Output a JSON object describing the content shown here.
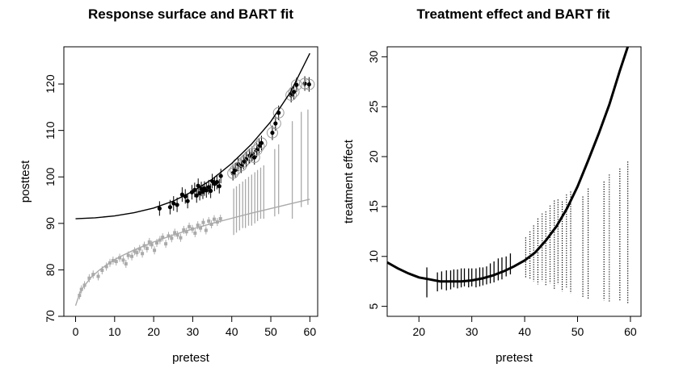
{
  "chart_data": [
    {
      "type": "scatter",
      "title": "Response surface and BART fit",
      "xlabel": "pretest",
      "ylabel": "posttest",
      "xlim": [
        -3,
        62
      ],
      "ylim": [
        70,
        128
      ],
      "x_ticks": [
        0,
        10,
        20,
        30,
        40,
        50,
        60
      ],
      "y_ticks": [
        70,
        80,
        90,
        100,
        110,
        120
      ],
      "grid": false,
      "series": [
        {
          "role": "treated observations",
          "color": "#000000",
          "marker": "filled-circle-with-interval",
          "x": [
            21.5,
            24.2,
            25.1,
            26.0,
            27.3,
            28.1,
            28.7,
            29.8,
            30.5,
            31.0,
            31.4,
            31.8,
            32.2,
            32.6,
            33.0,
            33.5,
            34.1,
            34.6,
            35.0,
            35.6,
            36.2,
            36.8,
            37.2,
            40.3,
            40.9,
            41.6,
            42.4,
            43.0,
            43.7,
            44.5,
            45.2,
            45.8,
            46.4,
            47.0,
            47.6,
            50.4,
            51.2,
            52.0,
            55.2,
            55.9,
            56.6,
            58.7,
            59.8
          ],
          "y": [
            93.2,
            93.5,
            94.3,
            94.0,
            96.2,
            95.8,
            94.8,
            96.7,
            97.2,
            96.0,
            98.1,
            96.5,
            97.4,
            96.8,
            97.5,
            97.1,
            97.8,
            97.0,
            99.1,
            98.5,
            98.9,
            98.0,
            100.2,
            100.8,
            101.5,
            102.8,
            102.4,
            103.2,
            103.8,
            104.5,
            105.0,
            104.2,
            105.8,
            106.6,
            107.3,
            109.5,
            111.5,
            113.8,
            117.6,
            118.3,
            119.8,
            120.1,
            119.9
          ]
        },
        {
          "role": "control observations",
          "color": "#aaaaaa",
          "marker": "square",
          "x": [
            1.0,
            1.5,
            2.3,
            3.5,
            4.5,
            5.8,
            6.8,
            7.9,
            8.8,
            9.6,
            10.4,
            11.3,
            12.2,
            12.9,
            13.5,
            14.4,
            15.1,
            15.7,
            16.4,
            17.1,
            17.6,
            18.3,
            18.9,
            19.5,
            20.2,
            20.8,
            21.6,
            22.3,
            23.1,
            23.8,
            24.6,
            25.4,
            26.1,
            26.9,
            27.7,
            28.4,
            29.1,
            29.9,
            30.6,
            31.3,
            32.0,
            32.7,
            33.4,
            34.1,
            34.8,
            35.5,
            36.3,
            37.1
          ],
          "y": [
            74.5,
            75.8,
            76.7,
            78.2,
            79.0,
            78.6,
            79.9,
            80.7,
            81.5,
            82.0,
            81.8,
            82.6,
            82.1,
            81.3,
            83.1,
            82.9,
            84.0,
            83.7,
            84.5,
            83.5,
            85.2,
            84.6,
            86.0,
            85.4,
            84.2,
            85.8,
            86.4,
            87.0,
            85.6,
            87.3,
            86.8,
            88.0,
            87.5,
            86.9,
            88.6,
            88.2,
            89.3,
            88.8,
            87.9,
            89.6,
            89.0,
            90.2,
            88.5,
            90.5,
            89.8,
            90.9,
            90.3,
            91.0
          ]
        },
        {
          "role": "control intervals (no data)",
          "color": "#aaaaaa",
          "marker": "vertical-interval",
          "x": [
            40.5,
            41.2,
            42.0,
            42.8,
            43.5,
            44.3,
            45.1,
            45.9,
            46.6,
            47.4,
            48.2,
            51.0,
            52.0,
            55.5,
            57.8,
            59.5
          ],
          "y": [
            92.5,
            93.0,
            93.5,
            94.0,
            94.2,
            94.7,
            95.0,
            95.5,
            96.0,
            96.6,
            97.0,
            98.8,
            99.5,
            101.5,
            104.0,
            106.0
          ],
          "y_low": [
            87.5,
            88.0,
            88.5,
            89.0,
            89.0,
            89.5,
            89.5,
            90.0,
            90.5,
            91.0,
            91.0,
            91.5,
            92.0,
            91.0,
            93.5,
            94.0
          ],
          "y_high": [
            97.5,
            98.0,
            98.5,
            99.0,
            99.5,
            100.0,
            100.5,
            101.0,
            101.5,
            102.0,
            102.5,
            106.0,
            107.0,
            112.0,
            114.0,
            114.5
          ]
        },
        {
          "role": "true treated response curve",
          "color": "#000000",
          "marker": "line",
          "x": [
            0,
            5,
            10,
            15,
            20,
            25,
            30,
            35,
            40,
            45,
            50,
            55,
            60
          ],
          "y": [
            91.0,
            91.2,
            91.6,
            92.3,
            93.3,
            94.8,
            96.9,
            99.5,
            102.9,
            107.0,
            111.9,
            118.2,
            126.6
          ]
        },
        {
          "role": "true control response curve",
          "color": "#aaaaaa",
          "marker": "line",
          "x": [
            0,
            1,
            2,
            4,
            6,
            8,
            10,
            12,
            15,
            20,
            25,
            30,
            35,
            40,
            45,
            50,
            55,
            60
          ],
          "y": [
            72.3,
            74.8,
            76.3,
            78.4,
            79.9,
            81.1,
            82.2,
            83.1,
            84.3,
            86.0,
            87.5,
            88.8,
            90.0,
            91.1,
            92.2,
            93.2,
            94.2,
            95.2
          ]
        }
      ]
    },
    {
      "type": "scatter",
      "title": "Treatment effect and BART fit",
      "xlabel": "pretest",
      "ylabel": "treatment effect",
      "xlim": [
        14,
        62
      ],
      "ylim": [
        4,
        31
      ],
      "x_ticks": [
        20,
        30,
        40,
        50,
        60
      ],
      "y_ticks": [
        5,
        10,
        15,
        20,
        25,
        30
      ],
      "grid": false,
      "series": [
        {
          "role": "true treatment effect curve",
          "color": "#000000",
          "marker": "line",
          "x": [
            14,
            16,
            18,
            20,
            22,
            24,
            26,
            28,
            30,
            32,
            34,
            36,
            38,
            40,
            42,
            44,
            46,
            48,
            50,
            52,
            54,
            56,
            58,
            59.5
          ],
          "y": [
            9.4,
            8.8,
            8.3,
            7.9,
            7.7,
            7.5,
            7.5,
            7.5,
            7.6,
            7.8,
            8.1,
            8.5,
            9.0,
            9.6,
            10.4,
            11.6,
            13.0,
            14.8,
            17.0,
            19.6,
            22.3,
            25.2,
            28.6,
            31.0
          ]
        },
        {
          "role": "intervals where data present",
          "color": "#000000",
          "marker": "vertical-interval",
          "x": [
            21.5,
            23.5,
            24.3,
            25.2,
            26.0,
            26.6,
            27.3,
            28.0,
            28.6,
            29.4,
            30.0,
            30.8,
            31.5,
            32.1,
            32.8,
            33.5,
            34.2,
            35.0,
            35.7,
            36.5,
            37.3
          ],
          "y_low": [
            5.9,
            6.5,
            6.7,
            6.6,
            6.7,
            6.9,
            6.8,
            6.9,
            7.0,
            6.9,
            7.0,
            6.9,
            7.0,
            7.1,
            7.2,
            7.3,
            7.4,
            7.6,
            7.7,
            8.0,
            8.2
          ],
          "y_high": [
            8.9,
            8.4,
            8.5,
            8.6,
            8.6,
            8.7,
            8.7,
            8.8,
            8.8,
            8.8,
            8.8,
            8.8,
            8.9,
            8.9,
            9.0,
            9.3,
            9.5,
            9.8,
            9.9,
            10.0,
            10.3
          ]
        },
        {
          "role": "intervals where no data",
          "color": "#000000",
          "marker": "dotted-vertical-interval",
          "x": [
            40.2,
            41.0,
            41.7,
            42.5,
            43.3,
            44.0,
            44.8,
            45.6,
            46.3,
            47.1,
            47.9,
            48.7,
            51.0,
            52.0,
            55.0,
            56.0,
            58.0,
            59.5
          ],
          "y_low": [
            7.9,
            7.8,
            7.5,
            7.2,
            7.5,
            7.0,
            7.3,
            6.7,
            7.2,
            6.5,
            6.9,
            6.3,
            5.9,
            5.7,
            5.6,
            5.4,
            5.5,
            5.3
          ],
          "y_high": [
            11.9,
            12.5,
            13.1,
            13.8,
            14.3,
            14.5,
            15.1,
            15.6,
            15.7,
            15.5,
            16.2,
            16.5,
            16.0,
            16.8,
            17.5,
            18.2,
            18.8,
            19.5
          ]
        }
      ]
    }
  ]
}
